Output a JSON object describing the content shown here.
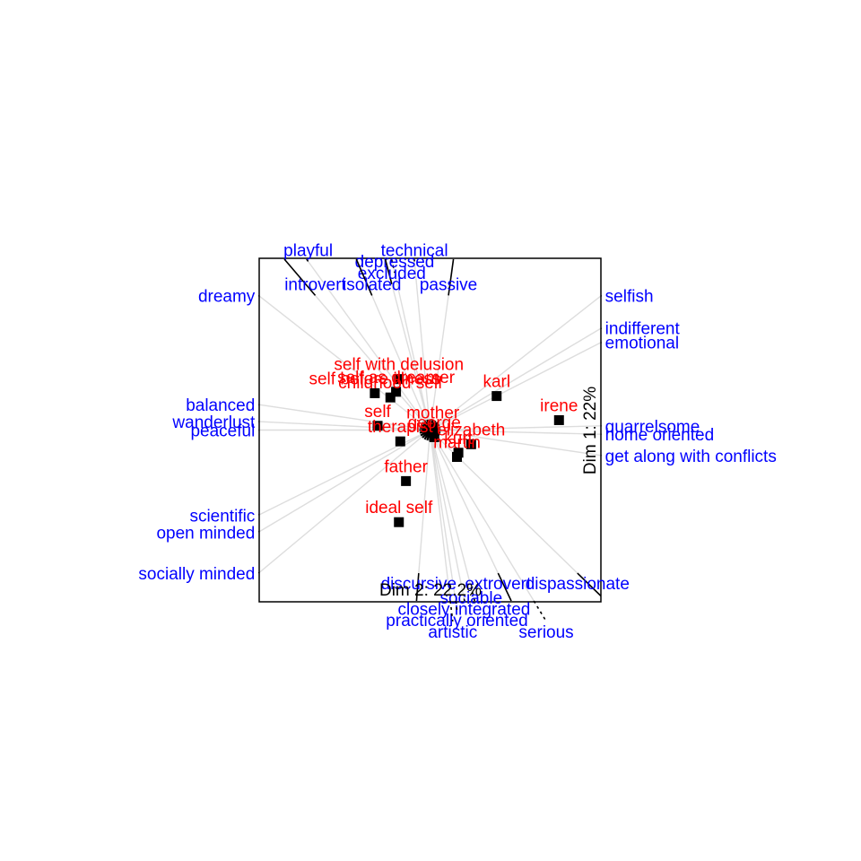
{
  "chart_data": {
    "type": "scatter",
    "title": "",
    "xlabel": "Dim 2: 22.2%",
    "ylabel": "Dim 1: 22%",
    "grid": false,
    "colors": {
      "elements": "#ff0000",
      "constructs": "#0000ff",
      "rays": "#dddddd",
      "axes": "#000000"
    },
    "elements": [
      {
        "name": "self with delusion",
        "x": -0.22,
        "y": 0.36
      },
      {
        "name": "self before illness",
        "x": -0.39,
        "y": 0.26
      },
      {
        "name": "self as dreamer",
        "x": -0.24,
        "y": 0.27
      },
      {
        "name": "childhood self",
        "x": -0.28,
        "y": 0.23
      },
      {
        "name": "karl",
        "x": 0.47,
        "y": 0.24
      },
      {
        "name": "irene",
        "x": 0.91,
        "y": 0.07
      },
      {
        "name": "self",
        "x": -0.37,
        "y": 0.03
      },
      {
        "name": "mother",
        "x": 0.02,
        "y": 0.02
      },
      {
        "name": "therapist",
        "x": -0.21,
        "y": -0.08
      },
      {
        "name": "george",
        "x": 0.03,
        "y": -0.05
      },
      {
        "name": "kurt",
        "x": 0.2,
        "y": -0.16
      },
      {
        "name": "elizabeth",
        "x": 0.29,
        "y": -0.1
      },
      {
        "name": "martin",
        "x": 0.19,
        "y": -0.19
      },
      {
        "name": "father",
        "x": -0.17,
        "y": -0.36
      },
      {
        "name": "ideal self",
        "x": -0.22,
        "y": -0.65
      }
    ],
    "constructs": [
      {
        "name": "playful",
        "x": -0.86,
        "y": 1.19
      },
      {
        "name": "technical",
        "x": -0.11,
        "y": 1.19
      },
      {
        "name": "depressed",
        "x": -0.25,
        "y": 1.11
      },
      {
        "name": "excluded",
        "x": -0.27,
        "y": 1.03
      },
      {
        "name": "isolated",
        "x": -0.41,
        "y": 0.95
      },
      {
        "name": "dreamy",
        "x": -1.21,
        "y": 0.95
      },
      {
        "name": "introvert",
        "x": -0.81,
        "y": 0.95
      },
      {
        "name": "passive",
        "x": 0.13,
        "y": 0.95
      },
      {
        "name": "selfish",
        "x": 1.21,
        "y": 0.95
      },
      {
        "name": "indifferent",
        "x": 1.21,
        "y": 0.72
      },
      {
        "name": "emotional",
        "x": 1.21,
        "y": 0.62
      },
      {
        "name": "balanced",
        "x": -1.21,
        "y": 0.18
      },
      {
        "name": "wanderlust",
        "x": -1.21,
        "y": 0.06
      },
      {
        "name": "peaceful",
        "x": -1.21,
        "y": 0.0
      },
      {
        "name": "quarrelsome",
        "x": 1.21,
        "y": 0.03
      },
      {
        "name": "home oriented",
        "x": 1.21,
        "y": -0.03
      },
      {
        "name": "get along with conflicts",
        "x": 1.21,
        "y": -0.18
      },
      {
        "name": "scientific",
        "x": -1.21,
        "y": -0.6
      },
      {
        "name": "open minded",
        "x": -1.21,
        "y": -0.72
      },
      {
        "name": "socially minded",
        "x": -1.21,
        "y": -1.01
      },
      {
        "name": "discursive",
        "x": -0.08,
        "y": -1.01
      },
      {
        "name": "extrovert",
        "x": 0.48,
        "y": -1.01
      },
      {
        "name": "dispassionate",
        "x": 1.04,
        "y": -1.01
      },
      {
        "name": "sociable",
        "x": 0.29,
        "y": -1.11
      },
      {
        "name": "closely integrated",
        "x": 0.24,
        "y": -1.19
      },
      {
        "name": "practically oriented",
        "x": 0.19,
        "y": -1.27
      },
      {
        "name": "artistic",
        "x": 0.16,
        "y": -1.35
      },
      {
        "name": "serious",
        "x": 0.82,
        "y": -1.35
      }
    ]
  }
}
